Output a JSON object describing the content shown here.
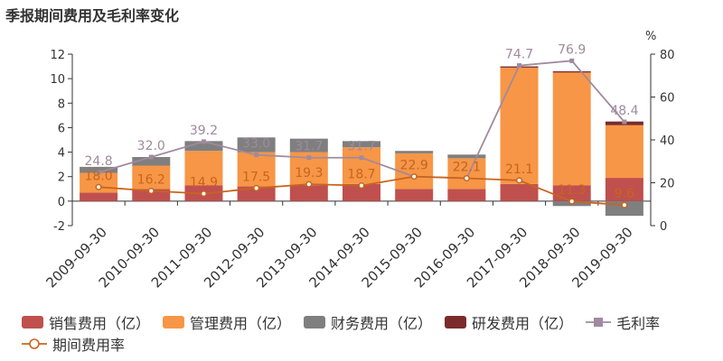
{
  "title": "季报期间费用及毛利率变化",
  "chart_data": {
    "type": "bar",
    "stacked": true,
    "categories": [
      "2009-09-30",
      "2010-09-30",
      "2011-09-30",
      "2012-09-30",
      "2013-09-30",
      "2014-09-30",
      "2015-09-30",
      "2016-09-30",
      "2017-09-30",
      "2018-09-30",
      "2019-09-30"
    ],
    "bar_series": [
      {
        "name": "销售费用（亿）",
        "color": "#c0504d",
        "values": [
          0.7,
          1.0,
          1.3,
          1.2,
          1.3,
          1.4,
          1.0,
          1.0,
          1.4,
          1.3,
          1.9
        ]
      },
      {
        "name": "管理费用（亿）",
        "color": "#f79646",
        "values": [
          1.6,
          1.9,
          2.8,
          2.8,
          2.7,
          3.0,
          2.9,
          2.5,
          9.5,
          9.2,
          4.3
        ]
      },
      {
        "name": "财务费用（亿）",
        "color": "#7f7f7f",
        "values": [
          0.5,
          0.7,
          0.8,
          1.2,
          1.1,
          0.5,
          0.2,
          0.3,
          0.0,
          -0.4,
          -1.2
        ]
      },
      {
        "name": "研发费用（亿）",
        "color": "#7b2b2b",
        "values": [
          0,
          0,
          0,
          0,
          0,
          0,
          0,
          0,
          0.1,
          0.1,
          0.3
        ]
      }
    ],
    "line_series": [
      {
        "name": "毛利率",
        "color": "#a08a9e",
        "marker": "square",
        "values": [
          24.8,
          32.0,
          39.2,
          33.0,
          31.7,
          31.7,
          22.9,
          22.1,
          74.7,
          76.9,
          48.4
        ]
      },
      {
        "name": "期间费用率",
        "color": "#c8641e",
        "marker": "circle",
        "values": [
          18.0,
          16.2,
          14.9,
          17.5,
          19.3,
          18.7,
          22.9,
          22.1,
          21.1,
          11.3,
          9.6
        ]
      }
    ],
    "y_left": {
      "min": -2,
      "max": 12,
      "ticks": [
        -2,
        0,
        2,
        4,
        6,
        8,
        10,
        12
      ]
    },
    "y_right": {
      "label": "%",
      "min": 0,
      "max": 80,
      "ticks": [
        0,
        20,
        40,
        60,
        80
      ]
    },
    "grid": false,
    "legend_position": "bottom"
  }
}
